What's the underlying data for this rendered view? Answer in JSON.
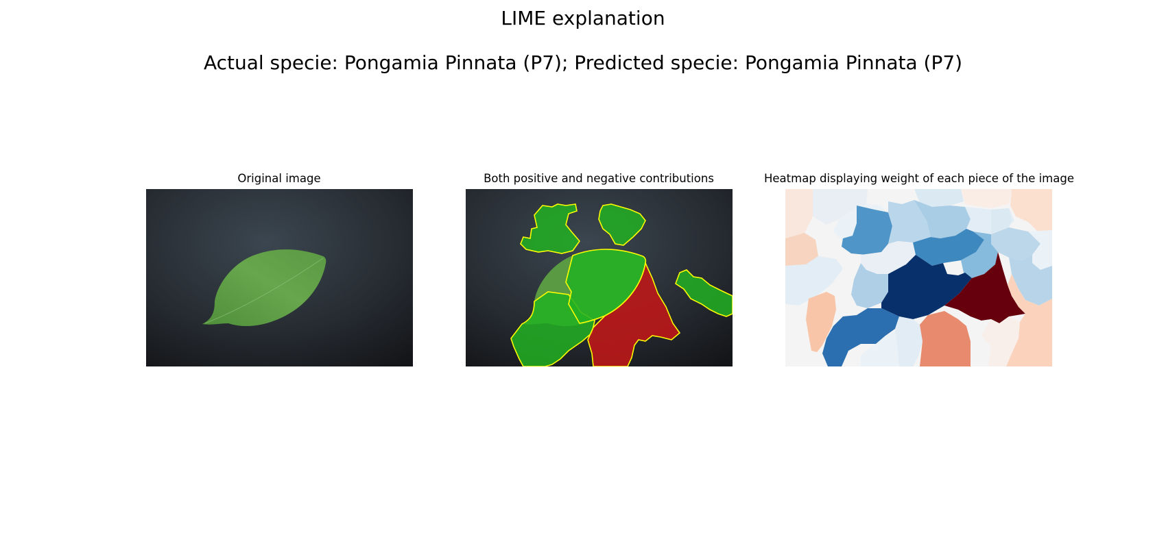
{
  "figure": {
    "title": "LIME explanation",
    "subtitle": "Actual specie: Pongamia Pinnata (P7); Predicted specie: Pongamia Pinnata (P7)"
  },
  "panels": [
    {
      "title": "Original image",
      "image": "leaf-photo"
    },
    {
      "title": "Both positive and negative contributions",
      "image": "lime-superpixel-overlay"
    },
    {
      "title": "Heatmap displaying weight of each piece of the image",
      "image": "superpixel-weight-heatmap"
    }
  ],
  "colors": {
    "background_dark": "#2a2e33",
    "leaf": "#5e9e45",
    "positive": "#1fae1f",
    "negative": "#c01818",
    "boundary": "#ffff00",
    "heatmap_darkest_blue": "#08306b",
    "heatmap_darkest_red": "#67000d",
    "heatmap_neutral": "#f4f4f4"
  }
}
